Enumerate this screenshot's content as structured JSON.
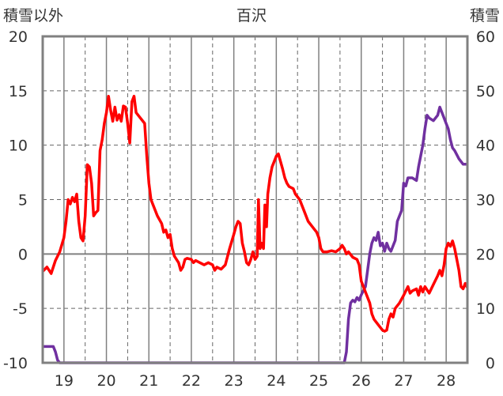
{
  "chart_data": {
    "type": "line",
    "title": "百沢",
    "ylabel_left": "積雪以外",
    "ylabel_right": "積雪",
    "x_ticks": [
      "19",
      "20",
      "21",
      "22",
      "23",
      "24",
      "25",
      "26",
      "27",
      "28"
    ],
    "xlim": [
      18.5,
      28.5
    ],
    "ylim_left": [
      -10,
      20
    ],
    "ylim_right": [
      0,
      60
    ],
    "y_ticks_left": [
      "20",
      "15",
      "10",
      "5",
      "0",
      "-5",
      "-10"
    ],
    "y_ticks_right": [
      "60",
      "50",
      "40",
      "30",
      "20",
      "10",
      "0"
    ],
    "grid": true,
    "colors": {
      "temperature": "#ff0000",
      "snow_depth": "#7030a0",
      "axis": "#808080",
      "grid": "#666666"
    },
    "series": [
      {
        "axis": "left",
        "color": "#ff0000",
        "points": [
          [
            18.5,
            -1.6
          ],
          [
            18.6,
            -1.2
          ],
          [
            18.7,
            -1.8
          ],
          [
            18.8,
            -0.6
          ],
          [
            18.9,
            0.2
          ],
          [
            19.0,
            1.5
          ],
          [
            19.05,
            3.0
          ],
          [
            19.1,
            5.0
          ],
          [
            19.15,
            4.6
          ],
          [
            19.2,
            5.2
          ],
          [
            19.25,
            4.8
          ],
          [
            19.3,
            5.5
          ],
          [
            19.35,
            3.0
          ],
          [
            19.4,
            1.5
          ],
          [
            19.45,
            1.2
          ],
          [
            19.5,
            3.5
          ],
          [
            19.55,
            8.2
          ],
          [
            19.6,
            8.0
          ],
          [
            19.65,
            6.5
          ],
          [
            19.7,
            3.5
          ],
          [
            19.75,
            3.8
          ],
          [
            19.8,
            4.0
          ],
          [
            19.85,
            9.5
          ],
          [
            19.9,
            10.5
          ],
          [
            19.95,
            12.0
          ],
          [
            20.0,
            13.0
          ],
          [
            20.05,
            14.5
          ],
          [
            20.1,
            13.2
          ],
          [
            20.15,
            12.2
          ],
          [
            20.2,
            13.5
          ],
          [
            20.25,
            12.3
          ],
          [
            20.3,
            12.8
          ],
          [
            20.35,
            12.2
          ],
          [
            20.4,
            13.6
          ],
          [
            20.45,
            13.5
          ],
          [
            20.5,
            12.0
          ],
          [
            20.55,
            10.2
          ],
          [
            20.6,
            14.0
          ],
          [
            20.65,
            14.5
          ],
          [
            20.7,
            13.0
          ],
          [
            20.8,
            12.5
          ],
          [
            20.9,
            12.0
          ],
          [
            20.95,
            9.0
          ],
          [
            21.0,
            6.5
          ],
          [
            21.05,
            5.0
          ],
          [
            21.1,
            4.5
          ],
          [
            21.2,
            3.5
          ],
          [
            21.3,
            2.8
          ],
          [
            21.35,
            2.0
          ],
          [
            21.4,
            2.2
          ],
          [
            21.45,
            1.5
          ],
          [
            21.5,
            1.8
          ],
          [
            21.55,
            0.5
          ],
          [
            21.6,
            -0.2
          ],
          [
            21.7,
            -0.8
          ],
          [
            21.75,
            -1.5
          ],
          [
            21.8,
            -1.2
          ],
          [
            21.85,
            -0.5
          ],
          [
            21.9,
            -0.4
          ],
          [
            22.0,
            -0.5
          ],
          [
            22.05,
            -0.8
          ],
          [
            22.1,
            -0.6
          ],
          [
            22.2,
            -0.8
          ],
          [
            22.3,
            -1.0
          ],
          [
            22.4,
            -0.8
          ],
          [
            22.5,
            -1.0
          ],
          [
            22.55,
            -1.5
          ],
          [
            22.6,
            -1.2
          ],
          [
            22.7,
            -1.4
          ],
          [
            22.8,
            -1.0
          ],
          [
            22.9,
            0.5
          ],
          [
            23.0,
            1.8
          ],
          [
            23.05,
            2.5
          ],
          [
            23.1,
            3.0
          ],
          [
            23.15,
            2.8
          ],
          [
            23.2,
            1.0
          ],
          [
            23.25,
            0.2
          ],
          [
            23.3,
            -0.8
          ],
          [
            23.35,
            -1.0
          ],
          [
            23.4,
            -0.5
          ],
          [
            23.45,
            0.2
          ],
          [
            23.5,
            -0.5
          ],
          [
            23.55,
            -0.2
          ],
          [
            23.58,
            5.0
          ],
          [
            23.62,
            0.5
          ],
          [
            23.65,
            1.0
          ],
          [
            23.7,
            0.5
          ],
          [
            23.73,
            4.5
          ],
          [
            23.77,
            2.5
          ],
          [
            23.8,
            5.5
          ],
          [
            23.85,
            7.0
          ],
          [
            23.9,
            8.0
          ],
          [
            23.95,
            8.5
          ],
          [
            24.0,
            9.0
          ],
          [
            24.05,
            9.2
          ],
          [
            24.1,
            8.5
          ],
          [
            24.15,
            7.8
          ],
          [
            24.2,
            7.0
          ],
          [
            24.25,
            6.5
          ],
          [
            24.3,
            6.2
          ],
          [
            24.4,
            6.0
          ],
          [
            24.45,
            5.5
          ],
          [
            24.55,
            5.0
          ],
          [
            24.65,
            4.0
          ],
          [
            24.75,
            3.0
          ],
          [
            24.85,
            2.5
          ],
          [
            24.95,
            2.0
          ],
          [
            25.0,
            1.5
          ],
          [
            25.05,
            0.5
          ],
          [
            25.1,
            0.2
          ],
          [
            25.2,
            0.2
          ],
          [
            25.3,
            0.3
          ],
          [
            25.4,
            0.2
          ],
          [
            25.5,
            0.5
          ],
          [
            25.55,
            0.8
          ],
          [
            25.6,
            0.5
          ],
          [
            25.65,
            0.0
          ],
          [
            25.7,
            0.2
          ],
          [
            25.8,
            -0.3
          ],
          [
            25.9,
            -0.5
          ],
          [
            25.95,
            -1.0
          ],
          [
            26.0,
            -2.5
          ],
          [
            26.1,
            -3.5
          ],
          [
            26.2,
            -4.5
          ],
          [
            26.25,
            -5.5
          ],
          [
            26.3,
            -6.0
          ],
          [
            26.4,
            -6.5
          ],
          [
            26.5,
            -7.0
          ],
          [
            26.55,
            -7.1
          ],
          [
            26.6,
            -7.0
          ],
          [
            26.65,
            -6.0
          ],
          [
            26.7,
            -5.5
          ],
          [
            26.75,
            -5.8
          ],
          [
            26.8,
            -5.0
          ],
          [
            26.9,
            -4.5
          ],
          [
            27.0,
            -3.8
          ],
          [
            27.1,
            -3.0
          ],
          [
            27.15,
            -3.6
          ],
          [
            27.2,
            -3.4
          ],
          [
            27.3,
            -3.2
          ],
          [
            27.35,
            -3.8
          ],
          [
            27.4,
            -3.0
          ],
          [
            27.45,
            -3.5
          ],
          [
            27.5,
            -3.0
          ],
          [
            27.6,
            -3.6
          ],
          [
            27.7,
            -2.8
          ],
          [
            27.8,
            -2.0
          ],
          [
            27.85,
            -1.5
          ],
          [
            27.9,
            -2.0
          ],
          [
            27.95,
            -1.0
          ],
          [
            28.0,
            0.5
          ],
          [
            28.05,
            1.0
          ],
          [
            28.1,
            0.7
          ],
          [
            28.15,
            1.2
          ],
          [
            28.2,
            0.5
          ],
          [
            28.25,
            -0.5
          ],
          [
            28.3,
            -1.5
          ],
          [
            28.35,
            -3.0
          ],
          [
            28.4,
            -3.2
          ],
          [
            28.45,
            -2.7
          ],
          [
            28.5,
            -3.1
          ]
        ]
      },
      {
        "axis": "right",
        "color": "#7030a0",
        "points": [
          [
            18.5,
            3.0
          ],
          [
            18.75,
            3.0
          ],
          [
            18.8,
            2.0
          ],
          [
            18.85,
            0.5
          ],
          [
            18.9,
            0.0
          ],
          [
            25.6,
            0.0
          ],
          [
            25.65,
            2.0
          ],
          [
            25.7,
            8.0
          ],
          [
            25.75,
            11.0
          ],
          [
            25.8,
            11.5
          ],
          [
            25.85,
            11.2
          ],
          [
            25.9,
            12.0
          ],
          [
            25.95,
            11.5
          ],
          [
            26.0,
            12.5
          ],
          [
            26.1,
            14.0
          ],
          [
            26.15,
            17.0
          ],
          [
            26.2,
            20.0
          ],
          [
            26.25,
            22.0
          ],
          [
            26.3,
            23.0
          ],
          [
            26.35,
            22.5
          ],
          [
            26.4,
            24.0
          ],
          [
            26.45,
            21.5
          ],
          [
            26.5,
            22.0
          ],
          [
            26.55,
            20.5
          ],
          [
            26.6,
            22.0
          ],
          [
            26.65,
            21.0
          ],
          [
            26.7,
            20.5
          ],
          [
            26.8,
            22.5
          ],
          [
            26.85,
            26.0
          ],
          [
            26.9,
            27.0
          ],
          [
            26.95,
            28.0
          ],
          [
            27.0,
            33.0
          ],
          [
            27.05,
            32.5
          ],
          [
            27.1,
            34.0
          ],
          [
            27.2,
            34.0
          ],
          [
            27.3,
            33.5
          ],
          [
            27.35,
            36.0
          ],
          [
            27.4,
            38.0
          ],
          [
            27.45,
            40.0
          ],
          [
            27.5,
            43.0
          ],
          [
            27.55,
            45.5
          ],
          [
            27.6,
            45.0
          ],
          [
            27.7,
            44.5
          ],
          [
            27.8,
            45.5
          ],
          [
            27.85,
            47.0
          ],
          [
            27.9,
            46.0
          ],
          [
            28.0,
            44.0
          ],
          [
            28.05,
            43.0
          ],
          [
            28.1,
            41.0
          ],
          [
            28.15,
            39.5
          ],
          [
            28.2,
            39.0
          ],
          [
            28.3,
            37.5
          ],
          [
            28.35,
            37.0
          ],
          [
            28.4,
            36.5
          ],
          [
            28.5,
            36.5
          ]
        ]
      }
    ]
  }
}
